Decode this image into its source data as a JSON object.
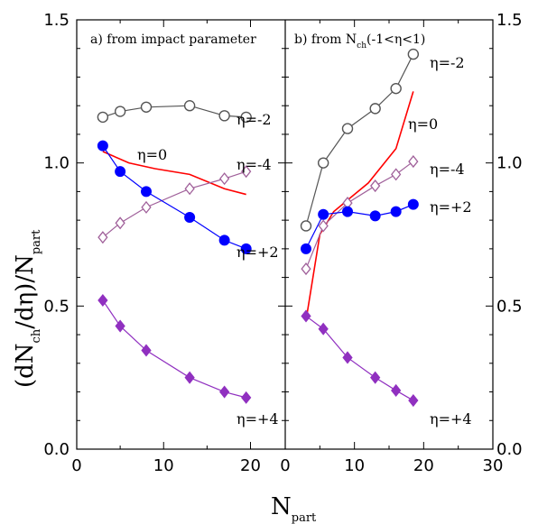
{
  "chart_data": {
    "type": "line",
    "ylabel_parts": [
      "(dN",
      "ch",
      "/dη)/N",
      "part"
    ],
    "xlabel_parts": [
      "N",
      "part"
    ],
    "ylim": [
      0.0,
      1.5
    ],
    "xlim": [
      0,
      30
    ],
    "y_ticks": [
      "0.0",
      "0.5",
      "1.0",
      "1.5"
    ],
    "left_x_ticks": [
      "0",
      "10",
      "20"
    ],
    "right_x_ticks": [
      "0",
      "10",
      "20",
      "30"
    ],
    "grid": false,
    "panels": [
      {
        "title": "a) from impact parameter",
        "series": [
          {
            "name": "η=-2",
            "color": "#555555",
            "marker": "open-circle",
            "x": [
              3,
              5,
              8,
              13,
              17,
              19.5
            ],
            "y": [
              1.16,
              1.18,
              1.195,
              1.2,
              1.165,
              1.16
            ]
          },
          {
            "name": "η=0",
            "color": "#ff0000",
            "marker": "none",
            "x": [
              3,
              6,
              9,
              13,
              17,
              19.5
            ],
            "y": [
              1.04,
              1.0,
              0.98,
              0.96,
              0.91,
              0.89
            ]
          },
          {
            "name": "η=-4",
            "color": "#a0609a",
            "marker": "open-diamond",
            "x": [
              3,
              5,
              8,
              13,
              17,
              19.5
            ],
            "y": [
              0.74,
              0.79,
              0.845,
              0.91,
              0.945,
              0.97
            ]
          },
          {
            "name": "η=+2",
            "color": "#0000ff",
            "marker": "filled-circle",
            "x": [
              3,
              5,
              8,
              13,
              17,
              19.5
            ],
            "y": [
              1.06,
              0.97,
              0.9,
              0.81,
              0.73,
              0.7
            ]
          },
          {
            "name": "η=+4",
            "color": "#9030c0",
            "marker": "filled-diamond",
            "x": [
              3,
              5,
              8,
              13,
              17,
              19.5
            ],
            "y": [
              0.52,
              0.43,
              0.345,
              0.25,
              0.2,
              0.18
            ]
          }
        ]
      },
      {
        "title_parts": [
          "b) from N",
          "ch",
          "(-1<η<1)"
        ],
        "series": [
          {
            "name": "η=-2",
            "color": "#555555",
            "marker": "open-circle",
            "x": [
              3,
              5.5,
              9,
              13,
              16,
              18.5
            ],
            "y": [
              0.78,
              1.0,
              1.12,
              1.19,
              1.26,
              1.38
            ]
          },
          {
            "name": "η=0",
            "color": "#ff0000",
            "marker": "none",
            "x": [
              3,
              5,
              7,
              9,
              12,
              16,
              18.5
            ],
            "y": [
              0.45,
              0.75,
              0.83,
              0.87,
              0.93,
              1.05,
              1.25
            ]
          },
          {
            "name": "η=-4",
            "color": "#a0609a",
            "marker": "open-diamond",
            "x": [
              3,
              5.5,
              9,
              13,
              16,
              18.5
            ],
            "y": [
              0.63,
              0.78,
              0.86,
              0.92,
              0.96,
              1.005
            ]
          },
          {
            "name": "η=+2",
            "color": "#0000ff",
            "marker": "filled-circle",
            "x": [
              3,
              5.5,
              9,
              13,
              16,
              18.5
            ],
            "y": [
              0.7,
              0.82,
              0.83,
              0.815,
              0.83,
              0.855
            ]
          },
          {
            "name": "η=+4",
            "color": "#9030c0",
            "marker": "filled-diamond",
            "x": [
              3,
              5.5,
              9,
              13,
              16,
              18.5
            ],
            "y": [
              0.465,
              0.42,
              0.32,
              0.25,
              0.205,
              0.17
            ]
          }
        ]
      }
    ]
  }
}
